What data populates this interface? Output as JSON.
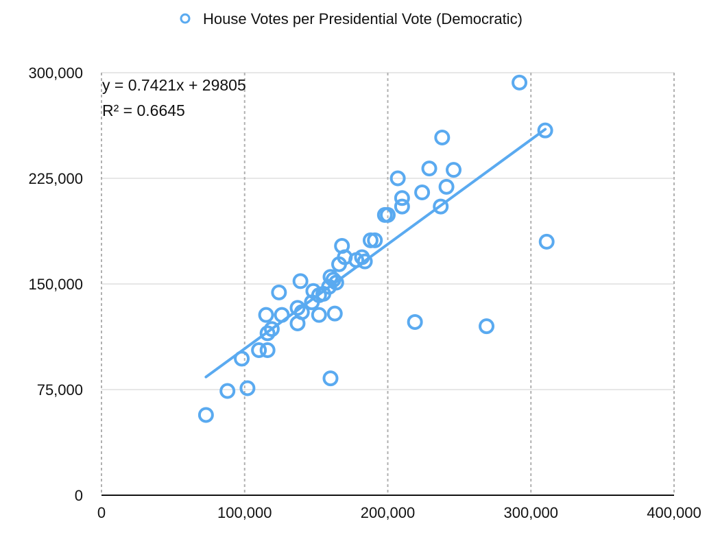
{
  "chart_data": {
    "type": "scatter",
    "title": "",
    "xlabel": "",
    "ylabel": "",
    "xlim": [
      0,
      400000
    ],
    "ylim": [
      0,
      300000
    ],
    "x_ticks": [
      0,
      100000,
      200000,
      300000,
      400000
    ],
    "y_ticks": [
      0,
      75000,
      150000,
      225000,
      300000
    ],
    "x_tick_labels": [
      "0",
      "100,000",
      "200,000",
      "300,000",
      "400,000"
    ],
    "y_tick_labels": [
      "0",
      "75,000",
      "150,000",
      "225,000",
      "300,000"
    ],
    "grid": true,
    "legend_position": "top-center",
    "series": [
      {
        "name": "House Votes per Presidential Vote (Democratic)",
        "color": "#5aaaf0",
        "points": [
          [
            73000,
            57000
          ],
          [
            88000,
            74000
          ],
          [
            102000,
            76000
          ],
          [
            98000,
            97000
          ],
          [
            110000,
            103000
          ],
          [
            116000,
            103000
          ],
          [
            116000,
            115000
          ],
          [
            119000,
            118000
          ],
          [
            115000,
            128000
          ],
          [
            126000,
            128000
          ],
          [
            124000,
            144000
          ],
          [
            137000,
            133000
          ],
          [
            140000,
            130000
          ],
          [
            137000,
            122000
          ],
          [
            139000,
            152000
          ],
          [
            147000,
            137000
          ],
          [
            148000,
            145000
          ],
          [
            152000,
            142000
          ],
          [
            155000,
            143000
          ],
          [
            152000,
            128000
          ],
          [
            159000,
            148000
          ],
          [
            160000,
            155000
          ],
          [
            162000,
            153000
          ],
          [
            164000,
            151000
          ],
          [
            163000,
            129000
          ],
          [
            160000,
            83000
          ],
          [
            166000,
            164000
          ],
          [
            168000,
            177000
          ],
          [
            170000,
            169000
          ],
          [
            178000,
            167000
          ],
          [
            182000,
            169000
          ],
          [
            184000,
            166000
          ],
          [
            188000,
            181000
          ],
          [
            191000,
            181000
          ],
          [
            200000,
            199000
          ],
          [
            198000,
            199000
          ],
          [
            207000,
            225000
          ],
          [
            210000,
            211000
          ],
          [
            210000,
            205000
          ],
          [
            224000,
            215000
          ],
          [
            229000,
            232000
          ],
          [
            219000,
            123000
          ],
          [
            237000,
            205000
          ],
          [
            238000,
            254000
          ],
          [
            241000,
            219000
          ],
          [
            246000,
            231000
          ],
          [
            269000,
            120000
          ],
          [
            292000,
            293000
          ],
          [
            310000,
            259000
          ],
          [
            311000,
            180000
          ]
        ]
      }
    ],
    "trendline": {
      "type": "linear",
      "slope": 0.7421,
      "intercept": 29805,
      "x_range": [
        73000,
        310000
      ],
      "equation_label": "y = 0.7421x + 29805",
      "r2_label": "R² = 0.6645"
    }
  }
}
